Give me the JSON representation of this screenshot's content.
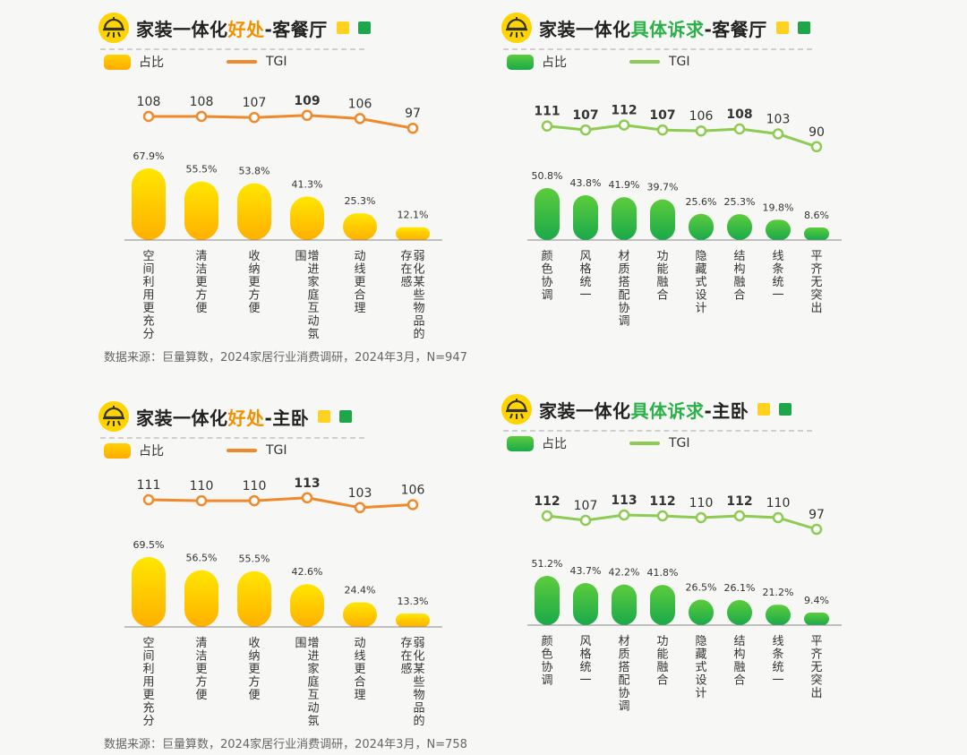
{
  "legend": {
    "bar_label": "占比",
    "line_label": "TGI"
  },
  "colors": {
    "orange_line": "#f0892c",
    "green_line": "#8dcb52",
    "yellow_top": "#ffe600",
    "yellow_bottom": "#ffb000",
    "green_top": "#5ccc3c",
    "green_bottom": "#1aa94a"
  },
  "panels": [
    {
      "title_prefix": "家装一体化",
      "title_highlight": "好处",
      "title_suffix": "-客餐厅",
      "source": "数据来源：巨量算数，2024家居行业消费调研，2024年3月，N=947"
    },
    {
      "title_prefix": "家装一体化",
      "title_highlight": "具体诉求",
      "title_suffix": "-客餐厅",
      "source": ""
    },
    {
      "title_prefix": "家装一体化",
      "title_highlight": "好处",
      "title_suffix": "-主卧",
      "source": "数据来源：巨量算数，2024家居行业消费调研，2024年3月，N=758"
    },
    {
      "title_prefix": "家装一体化",
      "title_highlight": "具体诉求",
      "title_suffix": "-主卧",
      "source": ""
    }
  ],
  "chart_data": [
    {
      "type": "bar",
      "title": "家装一体化好处-客餐厅",
      "categories": [
        "空间利用更充分",
        "清洁更方便",
        "收纳更方便",
        "增进家庭互动氛围",
        "动线更合理",
        "弱化某些物品的存在感"
      ],
      "label_columns": [
        [
          "空间利用更充分"
        ],
        [
          "清洁更方便"
        ],
        [
          "收纳更方便"
        ],
        [
          "围",
          "增进家庭互动氛"
        ],
        [
          "动线更合理"
        ],
        [
          "存在感",
          "弱化某些物品的"
        ]
      ],
      "series": [
        {
          "name": "占比",
          "type": "bar",
          "values": [
            67.9,
            55.5,
            53.8,
            41.3,
            25.3,
            12.1
          ],
          "unit": "%"
        },
        {
          "name": "TGI",
          "type": "line",
          "values": [
            108,
            108,
            107,
            109,
            106,
            97
          ]
        }
      ],
      "bold_tgi": [
        109
      ],
      "theme": "orange"
    },
    {
      "type": "bar",
      "title": "家装一体化具体诉求-客餐厅",
      "categories": [
        "颜色协调",
        "风格统一",
        "材质搭配协调",
        "功能融合",
        "隐藏式设计",
        "结构融合",
        "线条统一",
        "平齐无突出"
      ],
      "label_columns": [
        [
          "颜色协调"
        ],
        [
          "风格统一"
        ],
        [
          "材质搭配协调"
        ],
        [
          "功能融合"
        ],
        [
          "隐藏式设计"
        ],
        [
          "结构融合"
        ],
        [
          "线条统一"
        ],
        [
          "平齐无突出"
        ]
      ],
      "series": [
        {
          "name": "占比",
          "type": "bar",
          "values": [
            50.8,
            43.8,
            41.9,
            39.7,
            25.6,
            25.3,
            19.8,
            8.6
          ],
          "unit": "%"
        },
        {
          "name": "TGI",
          "type": "line",
          "values": [
            111,
            107,
            112,
            107,
            106,
            108,
            103,
            90
          ]
        }
      ],
      "bold_tgi": [
        111,
        112,
        107,
        108
      ],
      "theme": "green"
    },
    {
      "type": "bar",
      "title": "家装一体化好处-主卧",
      "categories": [
        "空间利用更充分",
        "清洁更方便",
        "收纳更方便",
        "增进家庭互动氛围",
        "动线更合理",
        "弱化某些物品的存在感"
      ],
      "label_columns": [
        [
          "空间利用更充分"
        ],
        [
          "清洁更方便"
        ],
        [
          "收纳更方便"
        ],
        [
          "围",
          "增进家庭互动氛"
        ],
        [
          "动线更合理"
        ],
        [
          "存在感",
          "弱化某些物品的"
        ]
      ],
      "series": [
        {
          "name": "占比",
          "type": "bar",
          "values": [
            69.5,
            56.5,
            55.5,
            42.6,
            24.4,
            13.3
          ],
          "unit": "%"
        },
        {
          "name": "TGI",
          "type": "line",
          "values": [
            111,
            110,
            110,
            113,
            103,
            106
          ]
        }
      ],
      "bold_tgi": [
        113
      ],
      "theme": "orange"
    },
    {
      "type": "bar",
      "title": "家装一体化具体诉求-主卧",
      "categories": [
        "颜色协调",
        "风格统一",
        "材质搭配协调",
        "功能融合",
        "隐藏式设计",
        "结构融合",
        "线条统一",
        "平齐无突出"
      ],
      "label_columns": [
        [
          "颜色协调"
        ],
        [
          "风格统一"
        ],
        [
          "材质搭配协调"
        ],
        [
          "功能融合"
        ],
        [
          "隐藏式设计"
        ],
        [
          "结构融合"
        ],
        [
          "线条统一"
        ],
        [
          "平齐无突出"
        ]
      ],
      "series": [
        {
          "name": "占比",
          "type": "bar",
          "values": [
            51.2,
            43.7,
            42.2,
            41.8,
            26.5,
            26.1,
            21.2,
            9.4
          ],
          "unit": "%"
        },
        {
          "name": "TGI",
          "type": "line",
          "values": [
            112,
            107,
            113,
            112,
            110,
            112,
            110,
            97
          ]
        }
      ],
      "bold_tgi": [
        112,
        113
      ],
      "theme": "green"
    }
  ]
}
